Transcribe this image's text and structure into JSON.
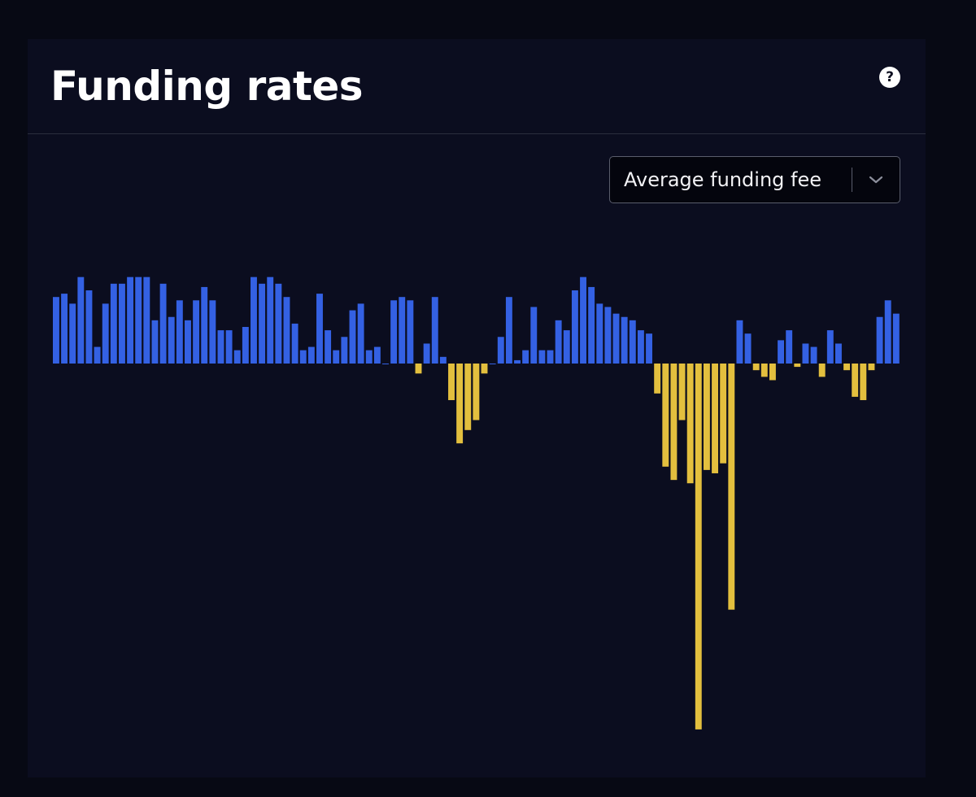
{
  "header": {
    "title": "Funding rates"
  },
  "help_icon": {
    "glyph": "?"
  },
  "dropdown": {
    "selected": "Average funding fee"
  },
  "colors": {
    "positive": "#3461e3",
    "negative": "#e3bf3e"
  },
  "chart_data": {
    "type": "bar",
    "title": "",
    "xlabel": "",
    "ylabel": "",
    "grid": false,
    "legend": "none",
    "ylim": [
      -1.1,
      0.35
    ],
    "values": [
      0.2,
      0.21,
      0.18,
      0.26,
      0.22,
      0.05,
      0.18,
      0.24,
      0.24,
      0.26,
      0.26,
      0.26,
      0.13,
      0.24,
      0.14,
      0.19,
      0.13,
      0.19,
      0.23,
      0.19,
      0.1,
      0.1,
      0.04,
      0.11,
      0.26,
      0.24,
      0.26,
      0.24,
      0.2,
      0.12,
      0.04,
      0.05,
      0.21,
      0.1,
      0.04,
      0.08,
      0.16,
      0.18,
      0.04,
      0.05,
      0.0,
      0.19,
      0.2,
      0.19,
      -0.03,
      0.06,
      0.2,
      0.02,
      -0.11,
      -0.24,
      -0.2,
      -0.17,
      -0.03,
      0.0,
      0.08,
      0.2,
      0.01,
      0.04,
      0.17,
      0.04,
      0.04,
      0.13,
      0.1,
      0.22,
      0.26,
      0.23,
      0.18,
      0.17,
      0.15,
      0.14,
      0.13,
      0.1,
      0.09,
      -0.09,
      -0.31,
      -0.35,
      -0.17,
      -0.36,
      -1.1,
      -0.32,
      -0.33,
      -0.3,
      -0.74,
      0.13,
      0.09,
      -0.02,
      -0.04,
      -0.05,
      0.07,
      0.1,
      -0.01,
      0.06,
      0.05,
      -0.04,
      0.1,
      0.06,
      -0.02,
      -0.1,
      -0.11,
      -0.02,
      0.14,
      0.19,
      0.15
    ]
  }
}
